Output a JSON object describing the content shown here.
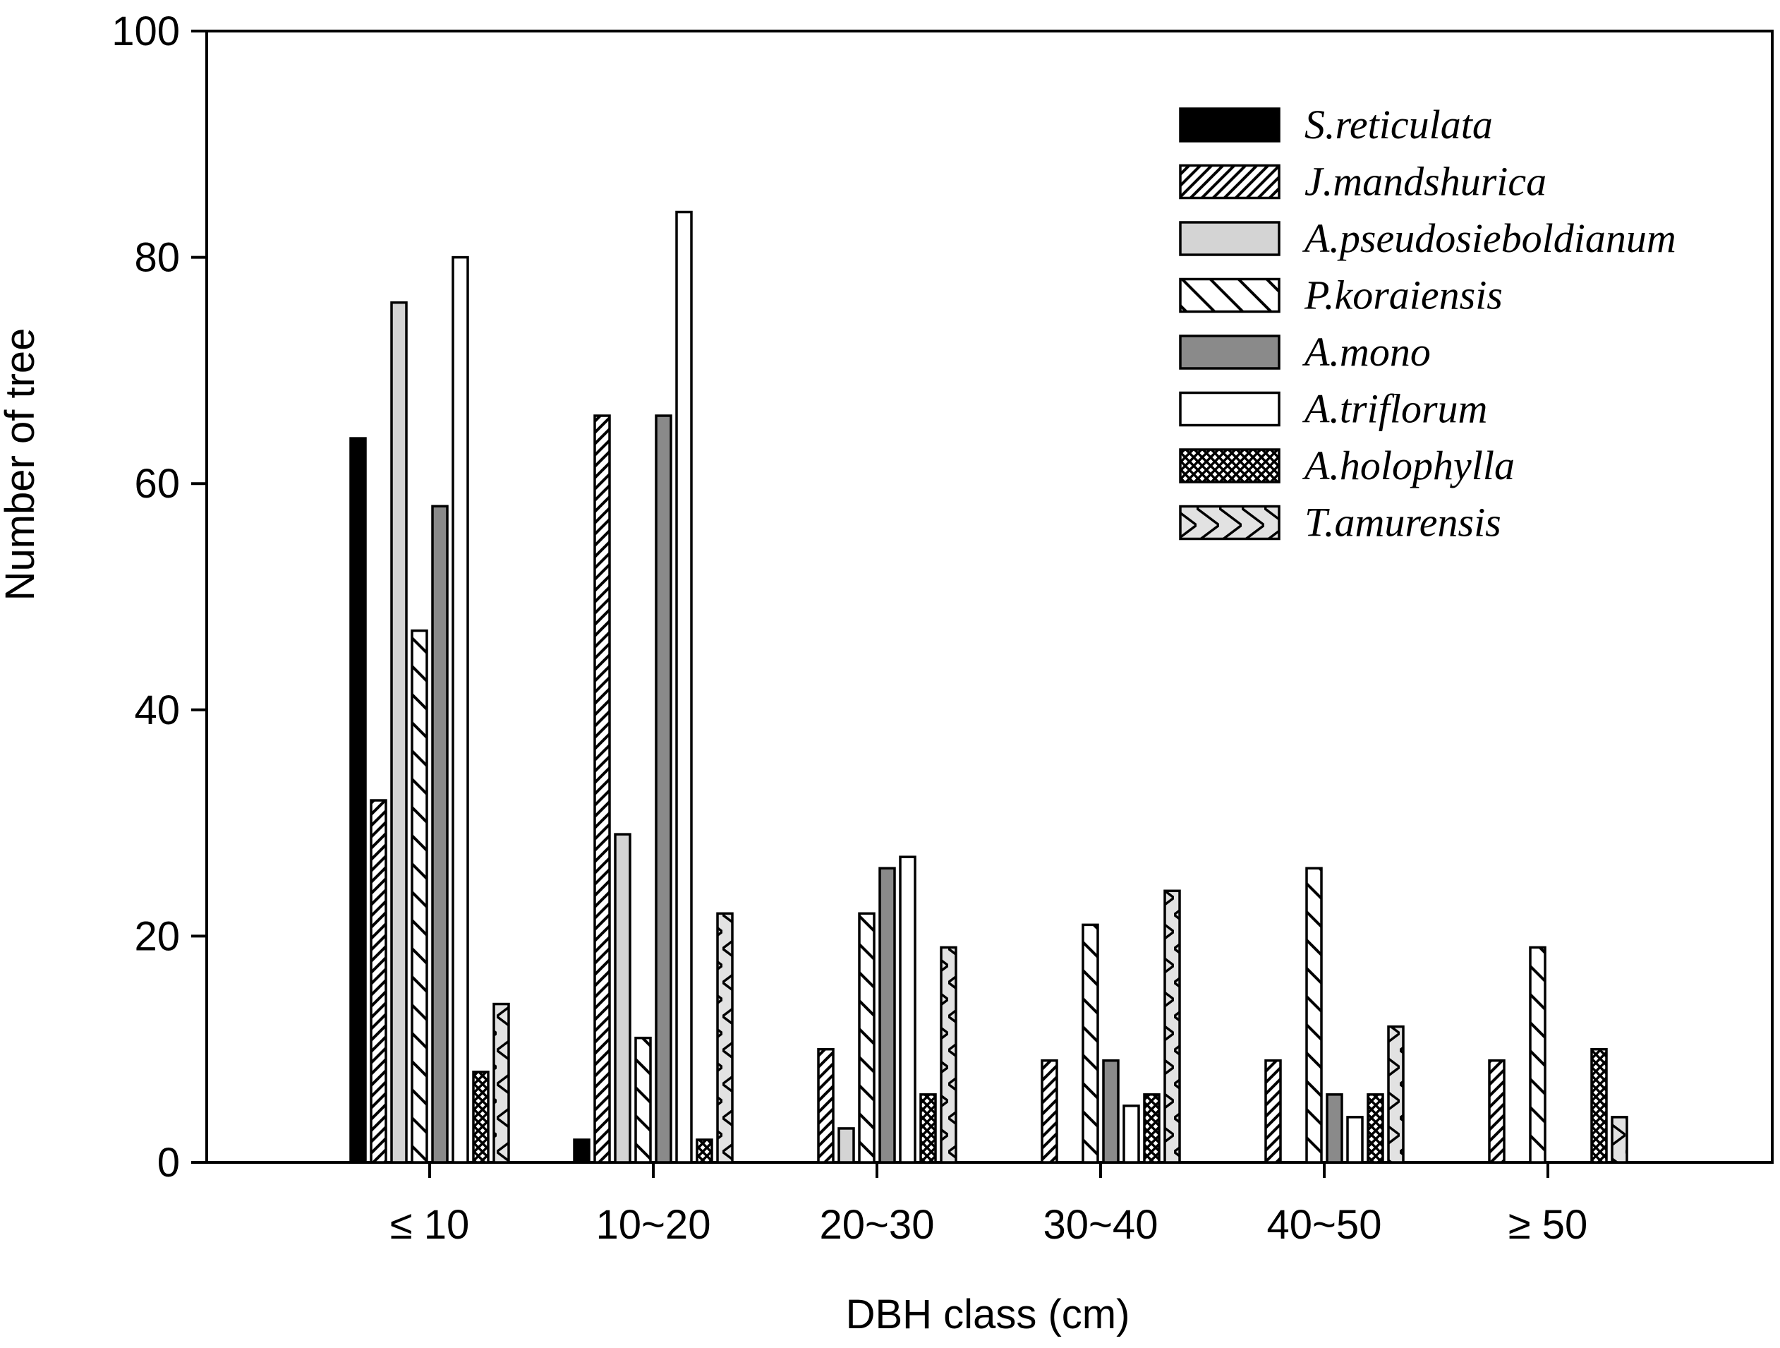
{
  "chart_data": {
    "type": "bar",
    "title": "",
    "xlabel": "DBH class (cm)",
    "ylabel": "Number of tree",
    "ylim": [
      0,
      100
    ],
    "yticks": [
      0,
      20,
      40,
      60,
      80,
      100
    ],
    "grid": false,
    "legend_position": "top-right",
    "categories": [
      "≤ 10",
      "10~20",
      "20~30",
      "30~40",
      "40~50",
      "≥ 50"
    ],
    "series": [
      {
        "name": "S.reticulata",
        "fill": "solid-black",
        "values": [
          64,
          2,
          0,
          0,
          0,
          0
        ]
      },
      {
        "name": "J.mandshurica",
        "fill": "dense-diagonal-hatch",
        "values": [
          32,
          66,
          10,
          9,
          9,
          9
        ]
      },
      {
        "name": "A.pseudosieboldianum",
        "fill": "light-gray",
        "values": [
          76,
          29,
          3,
          0,
          0,
          0
        ]
      },
      {
        "name": "P.koraiensis",
        "fill": "back-diagonal-hatch",
        "values": [
          47,
          11,
          22,
          21,
          26,
          19
        ]
      },
      {
        "name": "A.mono",
        "fill": "dark-gray",
        "values": [
          58,
          66,
          26,
          9,
          6,
          0
        ]
      },
      {
        "name": "A.triflorum",
        "fill": "white",
        "values": [
          80,
          84,
          27,
          5,
          4,
          0
        ]
      },
      {
        "name": "A.holophylla",
        "fill": "crosshatch",
        "values": [
          8,
          2,
          6,
          6,
          6,
          10
        ]
      },
      {
        "name": "T.amurensis",
        "fill": "gray-zigzag",
        "values": [
          14,
          22,
          19,
          24,
          12,
          4
        ]
      }
    ]
  }
}
